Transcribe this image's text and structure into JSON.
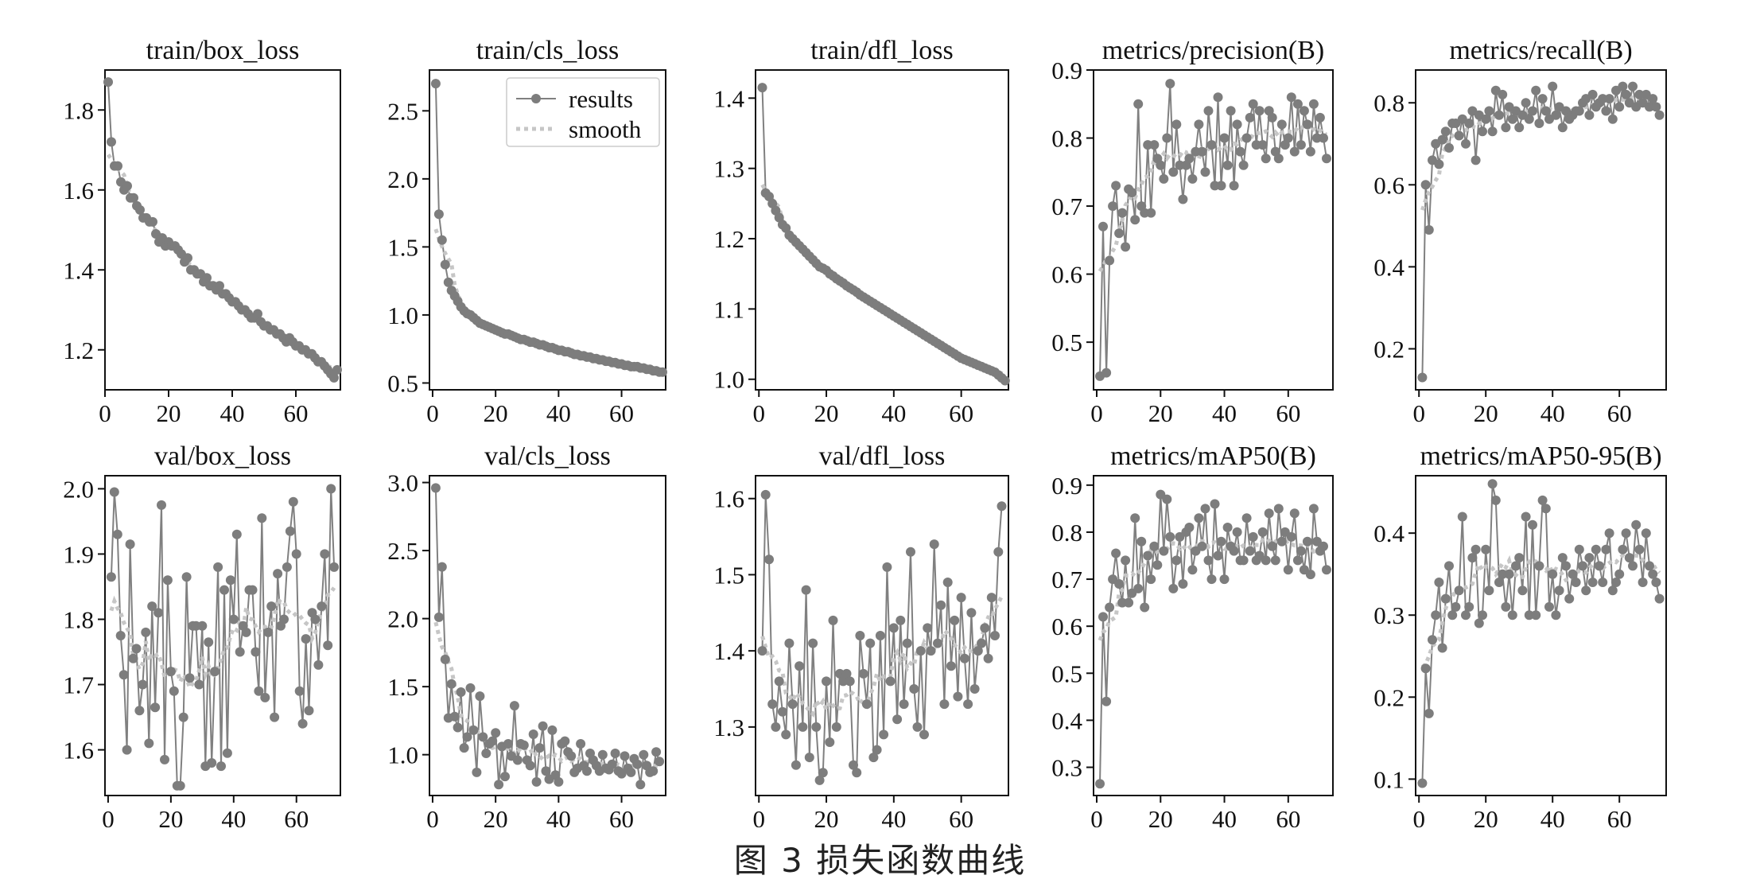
{
  "figure": {
    "caption": "图 3   损失函数曲线"
  },
  "chart_data": [
    {
      "id": "train_box_loss",
      "type": "line",
      "title": "train/box_loss",
      "xlim": [
        0,
        74
      ],
      "ylim": [
        1.1,
        1.9
      ],
      "xticks": [
        0,
        20,
        40,
        60
      ],
      "yticks": [
        1.2,
        1.4,
        1.6,
        1.8
      ],
      "ytick_labels": [
        "1.2",
        "1.4",
        "1.6",
        "1.8"
      ],
      "y": [
        1.87,
        1.72,
        1.66,
        1.66,
        1.62,
        1.6,
        1.61,
        1.58,
        1.58,
        1.56,
        1.55,
        1.53,
        1.53,
        1.52,
        1.52,
        1.49,
        1.47,
        1.48,
        1.46,
        1.47,
        1.46,
        1.46,
        1.45,
        1.44,
        1.42,
        1.43,
        1.4,
        1.4,
        1.39,
        1.39,
        1.37,
        1.38,
        1.36,
        1.36,
        1.35,
        1.36,
        1.34,
        1.34,
        1.33,
        1.32,
        1.32,
        1.31,
        1.3,
        1.3,
        1.29,
        1.28,
        1.28,
        1.29,
        1.27,
        1.26,
        1.26,
        1.25,
        1.25,
        1.24,
        1.24,
        1.23,
        1.22,
        1.23,
        1.22,
        1.21,
        1.21,
        1.2,
        1.2,
        1.19,
        1.19,
        1.18,
        1.17,
        1.17,
        1.16,
        1.15,
        1.14,
        1.13,
        1.15
      ]
    },
    {
      "id": "train_cls_loss",
      "type": "line",
      "title": "train/cls_loss",
      "xlim": [
        -1,
        74
      ],
      "ylim": [
        0.45,
        2.8
      ],
      "xticks": [
        0,
        20,
        40,
        60
      ],
      "yticks": [
        0.5,
        1.0,
        1.5,
        2.0,
        2.5
      ],
      "ytick_labels": [
        "0.5",
        "1.0",
        "1.5",
        "2.0",
        "2.5"
      ],
      "legend": {
        "entries": [
          "results",
          "smooth"
        ],
        "placement": "top-right"
      },
      "y": [
        2.7,
        1.74,
        1.55,
        1.37,
        1.24,
        1.18,
        1.14,
        1.1,
        1.06,
        1.03,
        1.01,
        1.0,
        0.98,
        0.96,
        0.94,
        0.93,
        0.92,
        0.91,
        0.9,
        0.89,
        0.88,
        0.87,
        0.86,
        0.86,
        0.85,
        0.84,
        0.83,
        0.82,
        0.82,
        0.81,
        0.8,
        0.8,
        0.79,
        0.78,
        0.78,
        0.77,
        0.76,
        0.76,
        0.75,
        0.74,
        0.74,
        0.73,
        0.73,
        0.72,
        0.71,
        0.71,
        0.7,
        0.7,
        0.69,
        0.69,
        0.68,
        0.68,
        0.67,
        0.67,
        0.66,
        0.66,
        0.65,
        0.65,
        0.64,
        0.64,
        0.63,
        0.63,
        0.62,
        0.62,
        0.62,
        0.61,
        0.61,
        0.6,
        0.6,
        0.59,
        0.59,
        0.58,
        0.58
      ]
    },
    {
      "id": "train_dfl_loss",
      "type": "line",
      "title": "train/dfl_loss",
      "xlim": [
        -1,
        74
      ],
      "ylim": [
        0.985,
        1.44
      ],
      "xticks": [
        0,
        20,
        40,
        60
      ],
      "yticks": [
        1.0,
        1.1,
        1.2,
        1.3,
        1.4
      ],
      "ytick_labels": [
        "1.0",
        "1.1",
        "1.2",
        "1.3",
        "1.4"
      ],
      "y": [
        1.415,
        1.265,
        1.26,
        1.25,
        1.24,
        1.23,
        1.22,
        1.215,
        1.205,
        1.2,
        1.195,
        1.19,
        1.185,
        1.18,
        1.175,
        1.17,
        1.165,
        1.16,
        1.158,
        1.155,
        1.15,
        1.147,
        1.143,
        1.14,
        1.137,
        1.133,
        1.13,
        1.127,
        1.124,
        1.12,
        1.117,
        1.114,
        1.111,
        1.108,
        1.105,
        1.102,
        1.099,
        1.096,
        1.093,
        1.09,
        1.087,
        1.084,
        1.081,
        1.078,
        1.075,
        1.072,
        1.069,
        1.066,
        1.063,
        1.06,
        1.057,
        1.054,
        1.051,
        1.048,
        1.045,
        1.042,
        1.039,
        1.036,
        1.033,
        1.03,
        1.028,
        1.026,
        1.024,
        1.022,
        1.02,
        1.018,
        1.016,
        1.014,
        1.012,
        1.01,
        1.006,
        1.002,
        0.998
      ]
    },
    {
      "id": "metrics_precision",
      "type": "line",
      "title": "metrics/precision(B)",
      "xlim": [
        -1,
        74
      ],
      "ylim": [
        0.43,
        0.9
      ],
      "xticks": [
        0,
        20,
        40,
        60
      ],
      "yticks": [
        0.5,
        0.6,
        0.7,
        0.8,
        0.9
      ],
      "ytick_labels": [
        "0.5",
        "0.6",
        "0.7",
        "0.8",
        "0.9"
      ],
      "y": [
        0.45,
        0.67,
        0.455,
        0.62,
        0.7,
        0.73,
        0.66,
        0.69,
        0.64,
        0.725,
        0.72,
        0.68,
        0.85,
        0.7,
        0.69,
        0.79,
        0.69,
        0.79,
        0.77,
        0.76,
        0.74,
        0.8,
        0.88,
        0.75,
        0.82,
        0.76,
        0.71,
        0.76,
        0.77,
        0.74,
        0.78,
        0.82,
        0.78,
        0.75,
        0.84,
        0.79,
        0.73,
        0.86,
        0.73,
        0.8,
        0.76,
        0.84,
        0.73,
        0.82,
        0.78,
        0.76,
        0.8,
        0.83,
        0.85,
        0.79,
        0.84,
        0.79,
        0.77,
        0.84,
        0.83,
        0.78,
        0.77,
        0.82,
        0.79,
        0.8,
        0.86,
        0.78,
        0.85,
        0.79,
        0.84,
        0.82,
        0.78,
        0.85,
        0.8,
        0.83,
        0.8,
        0.77
      ]
    },
    {
      "id": "metrics_recall",
      "type": "line",
      "title": "metrics/recall(B)",
      "xlim": [
        -1,
        74
      ],
      "ylim": [
        0.1,
        0.88
      ],
      "xticks": [
        0,
        20,
        40,
        60
      ],
      "yticks": [
        0.2,
        0.4,
        0.6,
        0.8
      ],
      "ytick_labels": [
        "0.2",
        "0.4",
        "0.6",
        "0.8"
      ],
      "y": [
        0.13,
        0.6,
        0.49,
        0.66,
        0.7,
        0.65,
        0.71,
        0.73,
        0.69,
        0.75,
        0.75,
        0.72,
        0.76,
        0.7,
        0.75,
        0.78,
        0.66,
        0.77,
        0.73,
        0.76,
        0.78,
        0.73,
        0.83,
        0.77,
        0.82,
        0.74,
        0.79,
        0.76,
        0.78,
        0.74,
        0.77,
        0.8,
        0.76,
        0.78,
        0.83,
        0.75,
        0.81,
        0.78,
        0.76,
        0.84,
        0.77,
        0.79,
        0.74,
        0.78,
        0.76,
        0.77,
        0.78,
        0.78,
        0.8,
        0.81,
        0.77,
        0.82,
        0.79,
        0.8,
        0.81,
        0.78,
        0.81,
        0.76,
        0.83,
        0.79,
        0.84,
        0.82,
        0.8,
        0.84,
        0.79,
        0.82,
        0.8,
        0.82,
        0.79,
        0.81,
        0.79,
        0.77
      ]
    },
    {
      "id": "val_box_loss",
      "type": "line",
      "title": "val/box_loss",
      "xlim": [
        -1,
        74
      ],
      "ylim": [
        1.53,
        2.02
      ],
      "xticks": [
        0,
        20,
        40,
        60
      ],
      "yticks": [
        1.6,
        1.7,
        1.8,
        1.9,
        2.0
      ],
      "ytick_labels": [
        "1.6",
        "1.7",
        "1.8",
        "1.9",
        "2.0"
      ],
      "y": [
        1.865,
        1.995,
        1.93,
        1.775,
        1.715,
        1.6,
        1.915,
        1.74,
        1.755,
        1.66,
        1.7,
        1.78,
        1.61,
        1.82,
        1.665,
        1.81,
        1.975,
        1.585,
        1.86,
        1.72,
        1.69,
        1.545,
        1.545,
        1.65,
        1.865,
        1.71,
        1.79,
        1.79,
        1.7,
        1.79,
        1.575,
        1.765,
        1.58,
        1.72,
        1.88,
        1.575,
        1.845,
        1.595,
        1.86,
        1.8,
        1.93,
        1.75,
        1.79,
        1.78,
        1.845,
        1.845,
        1.75,
        1.69,
        1.955,
        1.68,
        1.78,
        1.82,
        1.65,
        1.87,
        1.79,
        1.8,
        1.88,
        1.935,
        1.98,
        1.9,
        1.69,
        1.64,
        1.77,
        1.66,
        1.81,
        1.8,
        1.73,
        1.82,
        1.9,
        1.76,
        2.0,
        1.88
      ]
    },
    {
      "id": "val_cls_loss",
      "type": "line",
      "title": "val/cls_loss",
      "xlim": [
        -1,
        74
      ],
      "ylim": [
        0.7,
        3.05
      ],
      "xticks": [
        0,
        20,
        40,
        60
      ],
      "yticks": [
        1.0,
        1.5,
        2.0,
        2.5,
        3.0
      ],
      "ytick_labels": [
        "1.0",
        "1.5",
        "2.0",
        "2.5",
        "3.0"
      ],
      "y": [
        2.96,
        2.01,
        2.38,
        1.7,
        1.27,
        1.52,
        1.28,
        1.2,
        1.46,
        1.05,
        1.13,
        1.49,
        1.18,
        0.87,
        1.43,
        1.13,
        1.01,
        1.08,
        1.1,
        1.16,
        0.78,
        1.06,
        0.84,
        1.08,
        0.99,
        1.36,
        0.96,
        1.08,
        1.07,
        0.96,
        0.92,
        1.15,
        0.8,
        1.05,
        1.21,
        0.88,
        0.82,
        1.18,
        0.85,
        0.8,
        1.08,
        1.1,
        1.02,
        0.99,
        0.87,
        0.9,
        1.08,
        0.92,
        0.88,
        1.01,
        0.96,
        0.92,
        0.88,
        1.0,
        0.9,
        0.89,
        0.93,
        1.01,
        0.88,
        0.86,
        0.99,
        0.9,
        0.87,
        0.97,
        0.93,
        0.78,
        1.0,
        0.92,
        0.87,
        0.88,
        1.02,
        0.95
      ]
    },
    {
      "id": "val_dfl_loss",
      "type": "line",
      "title": "val/dfl_loss",
      "xlim": [
        -1,
        74
      ],
      "ylim": [
        1.21,
        1.63
      ],
      "xticks": [
        0,
        20,
        40,
        60
      ],
      "yticks": [
        1.3,
        1.4,
        1.5,
        1.6
      ],
      "ytick_labels": [
        "1.3",
        "1.4",
        "1.5",
        "1.6"
      ],
      "y": [
        1.4,
        1.605,
        1.52,
        1.33,
        1.3,
        1.36,
        1.32,
        1.29,
        1.41,
        1.33,
        1.25,
        1.38,
        1.3,
        1.48,
        1.26,
        1.41,
        1.3,
        1.23,
        1.24,
        1.36,
        1.28,
        1.44,
        1.3,
        1.37,
        1.36,
        1.37,
        1.36,
        1.25,
        1.24,
        1.42,
        1.37,
        1.33,
        1.41,
        1.26,
        1.27,
        1.42,
        1.29,
        1.51,
        1.36,
        1.43,
        1.31,
        1.44,
        1.33,
        1.41,
        1.53,
        1.35,
        1.3,
        1.4,
        1.29,
        1.43,
        1.4,
        1.54,
        1.41,
        1.46,
        1.33,
        1.49,
        1.38,
        1.44,
        1.34,
        1.47,
        1.39,
        1.33,
        1.45,
        1.35,
        1.4,
        1.41,
        1.43,
        1.39,
        1.47,
        1.42,
        1.53,
        1.59
      ]
    },
    {
      "id": "metrics_map50",
      "type": "line",
      "title": "metrics/mAP50(B)",
      "xlim": [
        -1,
        74
      ],
      "ylim": [
        0.24,
        0.92
      ],
      "xticks": [
        0,
        20,
        40,
        60
      ],
      "yticks": [
        0.3,
        0.4,
        0.5,
        0.6,
        0.7,
        0.8,
        0.9
      ],
      "ytick_labels": [
        "0.3",
        "0.4",
        "0.5",
        "0.6",
        "0.7",
        "0.8",
        "0.9"
      ],
      "y": [
        0.265,
        0.62,
        0.44,
        0.64,
        0.7,
        0.755,
        0.69,
        0.65,
        0.74,
        0.65,
        0.67,
        0.83,
        0.68,
        0.78,
        0.64,
        0.75,
        0.7,
        0.77,
        0.73,
        0.88,
        0.76,
        0.87,
        0.79,
        0.68,
        0.74,
        0.79,
        0.69,
        0.8,
        0.81,
        0.72,
        0.76,
        0.83,
        0.77,
        0.85,
        0.74,
        0.7,
        0.86,
        0.75,
        0.78,
        0.7,
        0.81,
        0.77,
        0.76,
        0.8,
        0.74,
        0.74,
        0.83,
        0.76,
        0.79,
        0.74,
        0.75,
        0.8,
        0.74,
        0.84,
        0.77,
        0.74,
        0.85,
        0.78,
        0.8,
        0.72,
        0.79,
        0.84,
        0.74,
        0.76,
        0.72,
        0.78,
        0.71,
        0.85,
        0.78,
        0.76,
        0.77,
        0.72
      ]
    },
    {
      "id": "metrics_map50_95",
      "type": "line",
      "title": "metrics/mAP50-95(B)",
      "xlim": [
        -1,
        74
      ],
      "ylim": [
        0.08,
        0.47
      ],
      "xticks": [
        0,
        20,
        40,
        60
      ],
      "yticks": [
        0.1,
        0.2,
        0.3,
        0.4
      ],
      "ytick_labels": [
        "0.1",
        "0.2",
        "0.3",
        "0.4"
      ],
      "y": [
        0.095,
        0.235,
        0.18,
        0.27,
        0.3,
        0.34,
        0.26,
        0.32,
        0.36,
        0.3,
        0.31,
        0.33,
        0.42,
        0.3,
        0.31,
        0.37,
        0.38,
        0.29,
        0.3,
        0.38,
        0.33,
        0.46,
        0.44,
        0.34,
        0.35,
        0.31,
        0.35,
        0.3,
        0.36,
        0.37,
        0.33,
        0.42,
        0.3,
        0.41,
        0.3,
        0.36,
        0.44,
        0.43,
        0.31,
        0.35,
        0.3,
        0.33,
        0.37,
        0.36,
        0.32,
        0.35,
        0.34,
        0.38,
        0.36,
        0.33,
        0.37,
        0.34,
        0.38,
        0.36,
        0.34,
        0.38,
        0.4,
        0.33,
        0.34,
        0.35,
        0.38,
        0.4,
        0.37,
        0.36,
        0.41,
        0.38,
        0.34,
        0.4,
        0.36,
        0.35,
        0.34,
        0.32
      ]
    }
  ]
}
